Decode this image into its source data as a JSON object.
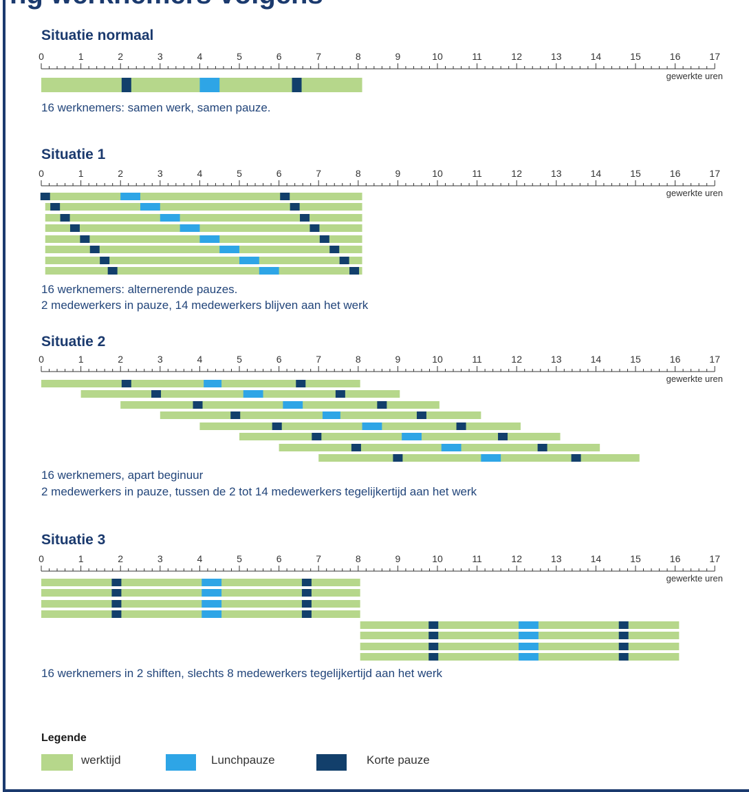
{
  "page": {
    "title": "ng werknemers volgens"
  },
  "colors": {
    "frame": "#1b3a6e",
    "werktijd": "#b6d78b",
    "lunchpauze": "#2ea5e6",
    "korte_pauze": "#123f6b",
    "title": "#1b3a6e",
    "caption": "#22457a"
  },
  "axis": {
    "ticks": [
      "0",
      "1",
      "2",
      "3",
      "4",
      "5",
      "6",
      "7",
      "8",
      "9",
      "10",
      "11",
      "12",
      "13",
      "14",
      "15",
      "16",
      "17"
    ],
    "unit_label": "gewerkte uren",
    "min": 0,
    "max": 17
  },
  "sections": [
    {
      "title": "Situatie normaal",
      "caption_lines": [
        "16 werknemers: samen werk, samen pauze."
      ]
    },
    {
      "title": "Situatie 1",
      "caption_lines": [
        "16 werknemers: alternerende pauzes.",
        "2 medewerkers in pauze, 14 medewerkers blijven aan het werk"
      ]
    },
    {
      "title": "Situatie 2",
      "caption_lines": [
        "16 werknemers, apart beginuur",
        "2 medewerkers in pauze, tussen de 2 tot 14 medewerkers tegelijkertijd aan het werk"
      ]
    },
    {
      "title": "Situatie 3",
      "caption_lines": [
        "16 werknemers in 2 shiften, slechts 8 medewerkers tegelijkertijd aan het werk"
      ]
    }
  ],
  "legend": {
    "title": "Legende",
    "items": [
      {
        "label": "werktijd",
        "kind": "werktijd"
      },
      {
        "label": "Lunchpauze",
        "kind": "lunchpauze"
      },
      {
        "label": "Korte pauze",
        "kind": "korte_pauze"
      }
    ]
  },
  "schedules": [
    {
      "rows": [
        {
          "start": 0,
          "end": 8.1,
          "korte": [
            2.15,
            6.45
          ],
          "lunch": [
            4.0,
            4.5
          ]
        }
      ]
    },
    {
      "rows": [
        {
          "start": 0,
          "end": 8.1,
          "korte": [
            0.1,
            6.15
          ],
          "lunch": [
            2.0,
            2.5
          ]
        },
        {
          "start": 0.1,
          "end": 8.1,
          "korte": [
            0.35,
            6.4
          ],
          "lunch": [
            2.5,
            3.0
          ]
        },
        {
          "start": 0.1,
          "end": 8.1,
          "korte": [
            0.6,
            6.65
          ],
          "lunch": [
            3.0,
            3.5
          ]
        },
        {
          "start": 0.1,
          "end": 8.1,
          "korte": [
            0.85,
            6.9
          ],
          "lunch": [
            3.5,
            4.0
          ]
        },
        {
          "start": 0.1,
          "end": 8.1,
          "korte": [
            1.1,
            7.15
          ],
          "lunch": [
            4.0,
            4.5
          ]
        },
        {
          "start": 0.1,
          "end": 8.1,
          "korte": [
            1.35,
            7.4
          ],
          "lunch": [
            4.5,
            5.0
          ]
        },
        {
          "start": 0.1,
          "end": 8.1,
          "korte": [
            1.6,
            7.65
          ],
          "lunch": [
            5.0,
            5.5
          ]
        },
        {
          "start": 0.1,
          "end": 8.1,
          "korte": [
            1.8,
            7.9
          ],
          "lunch": [
            5.5,
            6.0
          ]
        }
      ]
    },
    {
      "rows": [
        {
          "start": 0,
          "end": 8.05,
          "korte": [
            2.15,
            6.55
          ],
          "lunch": [
            4.1,
            4.55
          ]
        },
        {
          "start": 1.0,
          "end": 9.05,
          "korte": [
            2.9,
            7.55
          ],
          "lunch": [
            5.1,
            5.6
          ]
        },
        {
          "start": 2.0,
          "end": 10.05,
          "korte": [
            3.95,
            8.6
          ],
          "lunch": [
            6.1,
            6.6
          ]
        },
        {
          "start": 3.0,
          "end": 11.1,
          "korte": [
            4.9,
            9.6
          ],
          "lunch": [
            7.1,
            7.55
          ]
        },
        {
          "start": 4.0,
          "end": 12.1,
          "korte": [
            5.95,
            10.6
          ],
          "lunch": [
            8.1,
            8.6
          ]
        },
        {
          "start": 5.0,
          "end": 13.1,
          "korte": [
            6.95,
            11.65
          ],
          "lunch": [
            9.1,
            9.6
          ]
        },
        {
          "start": 6.0,
          "end": 14.1,
          "korte": [
            7.95,
            12.65
          ],
          "lunch": [
            10.1,
            10.6
          ]
        },
        {
          "start": 7.0,
          "end": 15.1,
          "korte": [
            9.0,
            13.5
          ],
          "lunch": [
            11.1,
            11.6
          ]
        }
      ]
    },
    {
      "rows": [
        {
          "start": 0,
          "end": 8.05,
          "korte": [
            1.9,
            6.7
          ],
          "lunch": [
            4.05,
            4.55
          ]
        },
        {
          "start": 0,
          "end": 8.05,
          "korte": [
            1.9,
            6.7
          ],
          "lunch": [
            4.05,
            4.55
          ]
        },
        {
          "start": 0,
          "end": 8.05,
          "korte": [
            1.9,
            6.7
          ],
          "lunch": [
            4.05,
            4.55
          ]
        },
        {
          "start": 0,
          "end": 8.05,
          "korte": [
            1.9,
            6.7
          ],
          "lunch": [
            4.05,
            4.55
          ]
        },
        {
          "start": 8.05,
          "end": 16.1,
          "korte": [
            9.9,
            14.7
          ],
          "lunch": [
            12.05,
            12.55
          ]
        },
        {
          "start": 8.05,
          "end": 16.1,
          "korte": [
            9.9,
            14.7
          ],
          "lunch": [
            12.05,
            12.55
          ]
        },
        {
          "start": 8.05,
          "end": 16.1,
          "korte": [
            9.9,
            14.7
          ],
          "lunch": [
            12.05,
            12.55
          ]
        },
        {
          "start": 8.05,
          "end": 16.1,
          "korte": [
            9.9,
            14.7
          ],
          "lunch": [
            12.05,
            12.55
          ]
        }
      ]
    }
  ]
}
